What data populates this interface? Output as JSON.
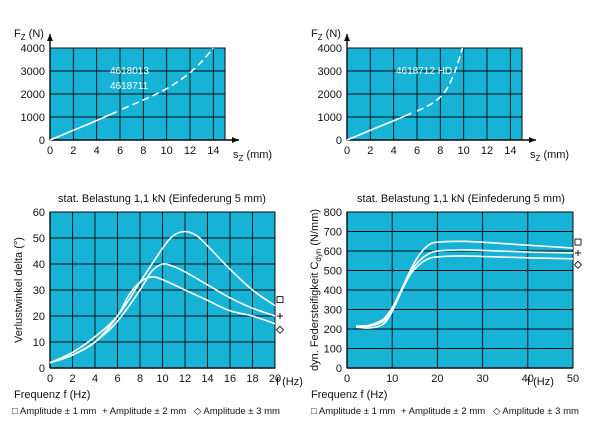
{
  "colors": {
    "plot_bg": "#17b3d6",
    "grid": "#0a0a0a",
    "curve": "#ffffff",
    "text": "#111111"
  },
  "chart_data": [
    {
      "type": "line",
      "ylabel": "F",
      "ylabel_sub": "Z",
      "ylabel_unit": "(N)",
      "xlabel": "s",
      "xlabel_sub": "Z",
      "xlabel_unit": "(mm)",
      "xlim": [
        0,
        15
      ],
      "ylim": [
        0,
        4000
      ],
      "xticks": [
        "0",
        "2",
        "4",
        "6",
        "8",
        "10",
        "12",
        "14"
      ],
      "yticks": [
        "0",
        "1000",
        "2000",
        "3000",
        "4000"
      ],
      "grid": true,
      "annotations": [
        "4618013",
        "4618711"
      ],
      "series": [
        {
          "x": [
            0,
            1,
            2,
            3,
            4,
            5,
            5.7
          ],
          "y": [
            0,
            210,
            420,
            630,
            850,
            1070,
            1220
          ],
          "style": "solid"
        },
        {
          "x": [
            6.2,
            7,
            8,
            9,
            10,
            11,
            12,
            13,
            14
          ],
          "y": [
            1350,
            1520,
            1740,
            1970,
            2230,
            2550,
            2930,
            3410,
            4000
          ],
          "style": "dashed"
        }
      ]
    },
    {
      "type": "line",
      "ylabel": "F",
      "ylabel_sub": "Z",
      "ylabel_unit": "(N)",
      "xlabel": "s",
      "xlabel_sub": "Z",
      "xlabel_unit": "(mm)",
      "xlim": [
        0,
        15
      ],
      "ylim": [
        0,
        4000
      ],
      "xticks": [
        "0",
        "2",
        "4",
        "6",
        "8",
        "10",
        "12",
        "14"
      ],
      "yticks": [
        "0",
        "1000",
        "2000",
        "3000",
        "4000"
      ],
      "grid": true,
      "annotations": [
        "4618712 HD"
      ],
      "series": [
        {
          "x": [
            0,
            1,
            2,
            3,
            4,
            5,
            5.5
          ],
          "y": [
            0,
            210,
            420,
            630,
            840,
            1050,
            1160
          ],
          "style": "solid"
        },
        {
          "x": [
            6,
            6.6,
            7.2,
            7.8,
            8.4,
            8.9,
            9.3,
            9.6,
            9.9
          ],
          "y": [
            1260,
            1400,
            1560,
            1780,
            2100,
            2550,
            3050,
            3500,
            4000
          ],
          "style": "dashed"
        }
      ]
    },
    {
      "type": "line",
      "title": "stat. Belastung 1,1 kN (Einfederung 5 mm)",
      "ylabel": "Verlustwinkel delta (°)",
      "xlabel": "Frequenz f (Hz)",
      "x_unit_label": "f (Hz)",
      "xlim": [
        0,
        20
      ],
      "ylim": [
        0,
        60
      ],
      "xticks": [
        "0",
        "2",
        "4",
        "6",
        "8",
        "10",
        "12",
        "14",
        "16",
        "18",
        "20"
      ],
      "yticks": [
        "0",
        "10",
        "20",
        "30",
        "40",
        "50",
        "60"
      ],
      "grid": true,
      "series": [
        {
          "marker": "square",
          "x": [
            0,
            2,
            4,
            6,
            8,
            10,
            11,
            12,
            13,
            14,
            16,
            18,
            20
          ],
          "y": [
            2,
            6,
            12,
            20,
            33,
            46,
            51,
            52.5,
            51,
            47,
            38,
            30,
            24
          ]
        },
        {
          "marker": "plus",
          "x": [
            0,
            2,
            4,
            6,
            8,
            9,
            10,
            11,
            12,
            14,
            16,
            18,
            20
          ],
          "y": [
            2,
            5,
            10,
            18,
            30,
            37,
            40,
            39,
            37,
            32,
            27,
            23,
            20
          ]
        },
        {
          "marker": "diamond",
          "x": [
            0,
            2,
            4,
            6,
            7,
            8,
            9,
            10,
            12,
            14,
            16,
            18,
            20
          ],
          "y": [
            2,
            5,
            10,
            20,
            28,
            33,
            35,
            34,
            30,
            26,
            22,
            20,
            17
          ]
        }
      ]
    },
    {
      "type": "line",
      "title": "stat. Belastung 1,1 kN (Einfederung 5 mm)",
      "ylabel": "dyn. Federsteifigkeit C",
      "ylabel_sub": "dyn",
      "ylabel_unit": "(N/mm)",
      "xlabel": "Frequenz f (Hz)",
      "x_unit_label": "f (Hz)",
      "xlim": [
        0,
        50
      ],
      "ylim": [
        0,
        800
      ],
      "xticks": [
        "0",
        "10",
        "20",
        "30",
        "40",
        "50"
      ],
      "yticks": [
        "0",
        "100",
        "200",
        "300",
        "400",
        "500",
        "600",
        "700",
        "800"
      ],
      "grid": true,
      "series": [
        {
          "marker": "square",
          "x": [
            2,
            5,
            8,
            10,
            12,
            14,
            16,
            18,
            20,
            25,
            30,
            40,
            50
          ],
          "y": [
            215,
            220,
            250,
            310,
            400,
            500,
            580,
            630,
            645,
            650,
            645,
            630,
            615
          ]
        },
        {
          "marker": "plus",
          "x": [
            2,
            5,
            8,
            10,
            12,
            14,
            16,
            18,
            20,
            25,
            30,
            40,
            50
          ],
          "y": [
            215,
            215,
            240,
            300,
            395,
            490,
            550,
            585,
            600,
            605,
            603,
            595,
            590
          ]
        },
        {
          "marker": "diamond",
          "x": [
            2,
            5,
            8,
            10,
            12,
            14,
            16,
            18,
            20,
            25,
            30,
            40,
            50
          ],
          "y": [
            210,
            205,
            225,
            290,
            390,
            480,
            530,
            560,
            570,
            575,
            572,
            565,
            560
          ]
        }
      ]
    }
  ],
  "legend": {
    "items": [
      {
        "marker": "□",
        "label": "Amplitude  ± 1 mm"
      },
      {
        "marker": "+",
        "label": "Amplitude  ± 2 mm"
      },
      {
        "marker": "◇",
        "label": "Amplitude  ± 3 mm"
      }
    ]
  }
}
